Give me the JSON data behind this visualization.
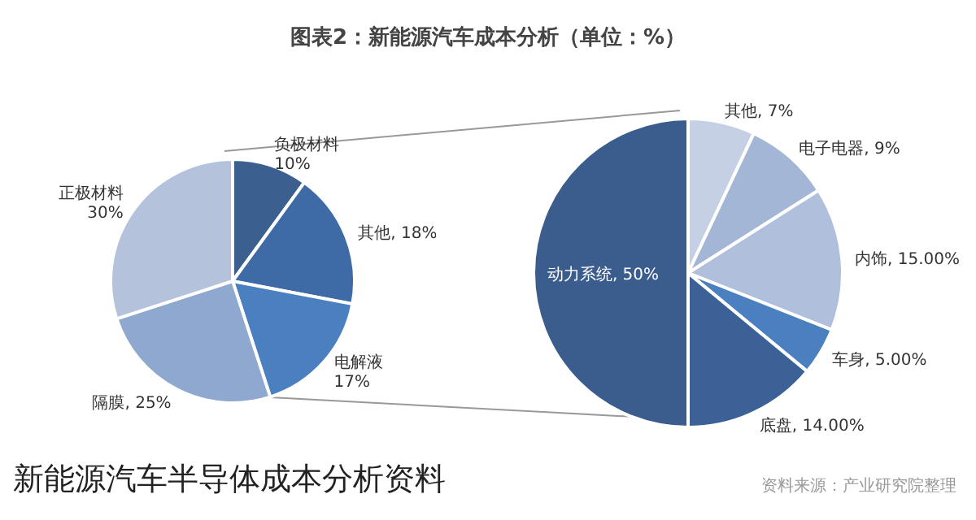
{
  "chart_data": [
    {
      "type": "pie",
      "title": "图表2：新能源汽车成本分析（单位：%）",
      "annotations": [
        "新能源汽车半导体成本分析资料",
        "资料来源：产业研究院整理"
      ],
      "categories": [
        "负极材料",
        "其他",
        "电解液",
        "隔膜",
        "正极材料"
      ],
      "values": [
        10,
        18,
        17,
        25,
        30
      ],
      "colors": [
        "#3b5f8f",
        "#3e6aa6",
        "#4a7fc0",
        "#8fa8cf",
        "#b4c2dc"
      ],
      "value_labels": [
        "10%",
        "18%",
        "17%",
        "25%",
        "30%"
      ]
    },
    {
      "type": "pie",
      "categories": [
        "其他",
        "电子电器",
        "内饰",
        "车身",
        "底盘",
        "动力系统"
      ],
      "values": [
        7,
        9,
        15,
        5,
        14,
        50
      ],
      "colors": [
        "#c5d0e4",
        "#a3b6d6",
        "#b0bfdc",
        "#4a7fc0",
        "#3c6197",
        "#3a5d8e"
      ],
      "value_labels": [
        "7%",
        "9%",
        "15.00%",
        "5.00%",
        "14.00%",
        "50%"
      ]
    }
  ]
}
